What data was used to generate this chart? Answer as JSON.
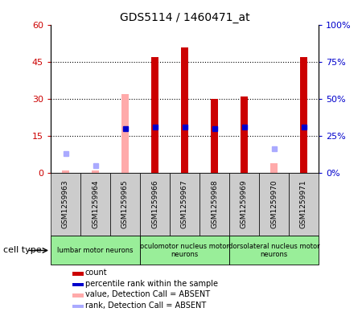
{
  "title": "GDS5114 / 1460471_at",
  "samples": [
    "GSM1259963",
    "GSM1259964",
    "GSM1259965",
    "GSM1259966",
    "GSM1259967",
    "GSM1259968",
    "GSM1259969",
    "GSM1259970",
    "GSM1259971"
  ],
  "count_values": [
    null,
    null,
    null,
    47,
    51,
    30,
    31,
    null,
    47
  ],
  "count_absent_values": [
    1,
    1,
    32,
    null,
    null,
    null,
    null,
    4,
    null
  ],
  "rank_values": [
    null,
    null,
    30,
    31,
    31,
    30,
    31,
    null,
    31
  ],
  "rank_absent_values": [
    13,
    5,
    null,
    null,
    null,
    null,
    null,
    16,
    null
  ],
  "ylim_left": [
    0,
    60
  ],
  "ylim_right": [
    0,
    100
  ],
  "yticks_left": [
    0,
    15,
    30,
    45,
    60
  ],
  "yticks_right": [
    0,
    25,
    50,
    75,
    100
  ],
  "ytick_labels_left": [
    "0",
    "15",
    "30",
    "45",
    "60"
  ],
  "ytick_labels_right": [
    "0%",
    "25%",
    "50%",
    "75%",
    "100%"
  ],
  "cell_groups": [
    {
      "label": "lumbar motor neurons",
      "start": 0,
      "end": 3
    },
    {
      "label": "oculomotor nucleus motor\nneurons",
      "start": 3,
      "end": 6
    },
    {
      "label": "dorsolateral nucleus motor\nneurons",
      "start": 6,
      "end": 9
    }
  ],
  "count_color": "#cc0000",
  "count_absent_color": "#ffaaaa",
  "rank_color": "#0000cc",
  "rank_absent_color": "#aaaaff",
  "cell_group_color": "#99ee99",
  "sample_box_color": "#cccccc",
  "background_color": "#ffffff",
  "plot_bg_color": "#ffffff",
  "bar_width": 0.25,
  "cell_type_label": "cell type",
  "legend_items": [
    {
      "label": "count",
      "color": "#cc0000"
    },
    {
      "label": "percentile rank within the sample",
      "color": "#0000cc"
    },
    {
      "label": "value, Detection Call = ABSENT",
      "color": "#ffaaaa"
    },
    {
      "label": "rank, Detection Call = ABSENT",
      "color": "#aaaaff"
    }
  ]
}
